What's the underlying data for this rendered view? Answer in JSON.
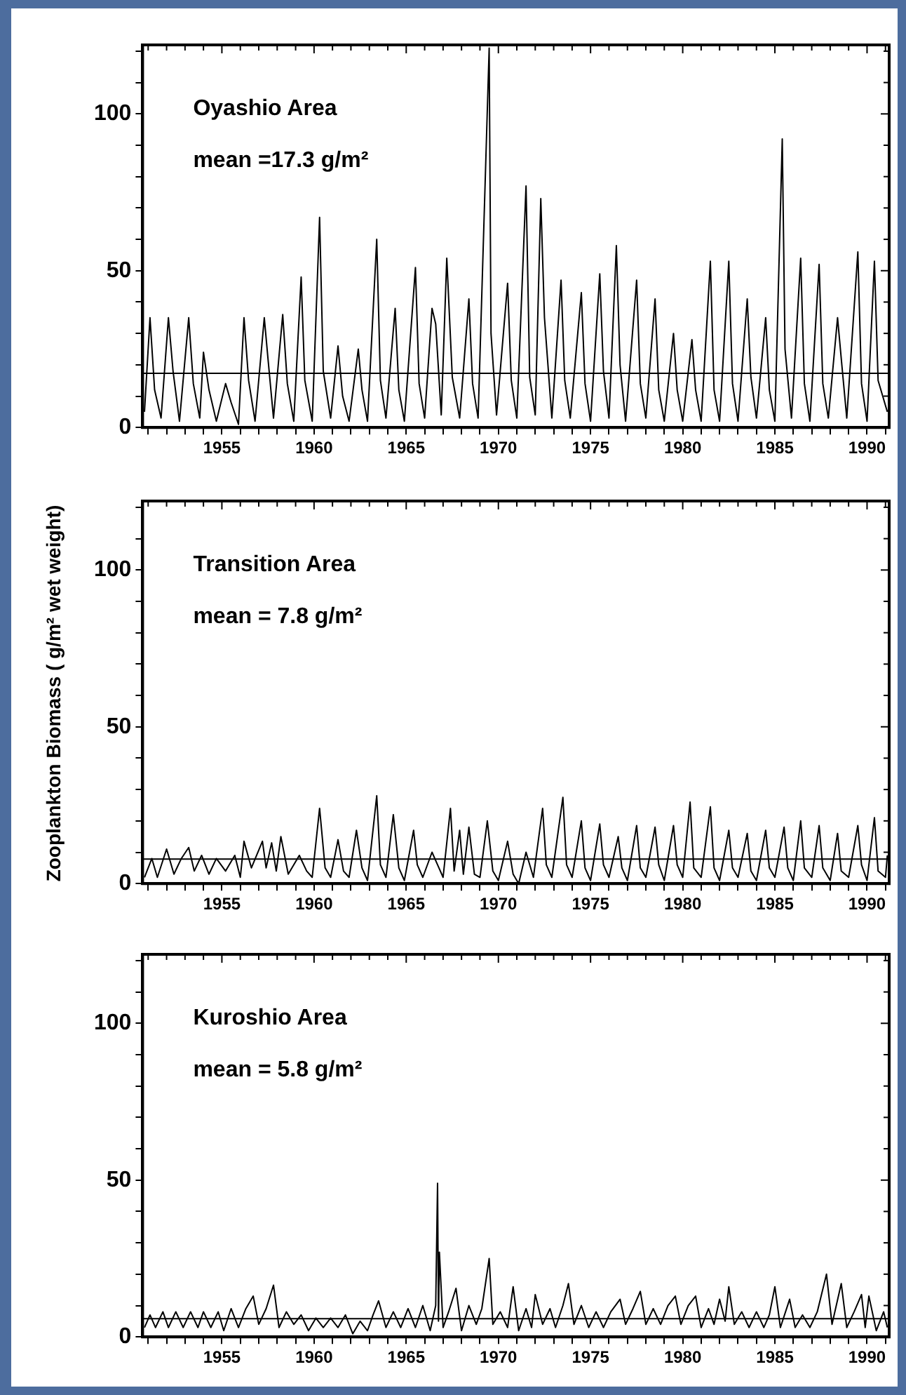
{
  "chart_data": [
    {
      "type": "line",
      "title": "Oyashio Area",
      "annotations": [
        "mean =17.3 g/m²"
      ],
      "color": "#000000",
      "marker": "none",
      "x": [
        1950.8,
        1951.1,
        1951.35,
        1951.7,
        1952.1,
        1952.35,
        1952.7,
        1953.2,
        1953.45,
        1953.8,
        1954.0,
        1954.3,
        1954.7,
        1955.2,
        1955.5,
        1955.9,
        1956.2,
        1956.45,
        1956.8,
        1957.3,
        1957.5,
        1957.8,
        1958.3,
        1958.55,
        1958.9,
        1959.3,
        1959.5,
        1959.9,
        1960.3,
        1960.5,
        1960.9,
        1961.3,
        1961.55,
        1961.9,
        1962.4,
        1962.6,
        1962.9,
        1963.4,
        1963.6,
        1963.9,
        1964.4,
        1964.6,
        1964.9,
        1965.5,
        1965.7,
        1966.0,
        1966.4,
        1966.6,
        1966.9,
        1967.2,
        1967.5,
        1967.9,
        1968.4,
        1968.6,
        1968.9,
        1969.5,
        1969.6,
        1969.9,
        1970.5,
        1970.7,
        1971.0,
        1971.5,
        1971.7,
        1972.0,
        1972.3,
        1972.5,
        1972.9,
        1973.4,
        1973.6,
        1973.9,
        1974.5,
        1974.7,
        1975.0,
        1975.5,
        1975.7,
        1976.0,
        1976.4,
        1976.6,
        1976.9,
        1977.5,
        1977.7,
        1978.0,
        1978.5,
        1978.7,
        1979.0,
        1979.5,
        1979.7,
        1980.0,
        1980.5,
        1980.7,
        1981.0,
        1981.5,
        1981.7,
        1982.0,
        1982.5,
        1982.7,
        1983.0,
        1983.5,
        1983.7,
        1984.0,
        1984.5,
        1984.7,
        1985.0,
        1985.4,
        1985.55,
        1985.9,
        1986.4,
        1986.6,
        1986.9,
        1987.4,
        1987.6,
        1987.9,
        1988.4,
        1988.6,
        1988.9,
        1989.5,
        1989.7,
        1990.0,
        1990.4,
        1990.6,
        1991.1
      ],
      "values": [
        5,
        35,
        12,
        3,
        35,
        18,
        2,
        35,
        14,
        3,
        24,
        12,
        2,
        14,
        8,
        1,
        35,
        15,
        2,
        35,
        22,
        3,
        36,
        14,
        2,
        48,
        15,
        2,
        67,
        18,
        3,
        26,
        10,
        2,
        25,
        12,
        2,
        60,
        15,
        3,
        38,
        12,
        2,
        51,
        14,
        3,
        38,
        33,
        4,
        54,
        16,
        3,
        41,
        14,
        3,
        121,
        30,
        4,
        46,
        15,
        3,
        77,
        16,
        4,
        73,
        35,
        3,
        47,
        15,
        3,
        43,
        14,
        2,
        49,
        18,
        3,
        58,
        20,
        2,
        47,
        14,
        3,
        41,
        12,
        2,
        30,
        12,
        2,
        28,
        12,
        2,
        53,
        12,
        2,
        53,
        14,
        2,
        41,
        16,
        3,
        35,
        12,
        2,
        92,
        25,
        3,
        54,
        14,
        2,
        52,
        14,
        3,
        35,
        22,
        3,
        56,
        14,
        2,
        53,
        15,
        5
      ],
      "ref_lines": [
        {
          "axis": "y",
          "value": 17.3
        }
      ],
      "xlim": [
        1950.7,
        1991.2
      ],
      "ylim": [
        0,
        122
      ],
      "xticks": [
        {
          "value": 1951,
          "label": null
        },
        {
          "value": 1952,
          "label": null
        },
        {
          "value": 1953,
          "label": null
        },
        {
          "value": 1954,
          "label": null
        },
        1955,
        {
          "value": 1956,
          "label": null
        },
        {
          "value": 1957,
          "label": null
        },
        {
          "value": 1958,
          "label": null
        },
        {
          "value": 1959,
          "label": null
        },
        1960,
        {
          "value": 1961,
          "label": null
        },
        {
          "value": 1962,
          "label": null
        },
        {
          "value": 1963,
          "label": null
        },
        {
          "value": 1964,
          "label": null
        },
        1965,
        {
          "value": 1966,
          "label": null
        },
        {
          "value": 1967,
          "label": null
        },
        {
          "value": 1968,
          "label": null
        },
        {
          "value": 1969,
          "label": null
        },
        1970,
        {
          "value": 1971,
          "label": null
        },
        {
          "value": 1972,
          "label": null
        },
        {
          "value": 1973,
          "label": null
        },
        {
          "value": 1974,
          "label": null
        },
        1975,
        {
          "value": 1976,
          "label": null
        },
        {
          "value": 1977,
          "label": null
        },
        {
          "value": 1978,
          "label": null
        },
        {
          "value": 1979,
          "label": null
        },
        1980,
        {
          "value": 1981,
          "label": null
        },
        {
          "value": 1982,
          "label": null
        },
        {
          "value": 1983,
          "label": null
        },
        {
          "value": 1984,
          "label": null
        },
        1985,
        {
          "value": 1986,
          "label": null
        },
        {
          "value": 1987,
          "label": null
        },
        {
          "value": 1988,
          "label": null
        },
        {
          "value": 1989,
          "label": null
        },
        1990,
        {
          "value": 1991,
          "label": null
        }
      ],
      "yticks": [
        0,
        {
          "value": 10,
          "label": null
        },
        {
          "value": 20,
          "label": null
        },
        {
          "value": 30,
          "label": null
        },
        {
          "value": 40,
          "label": null
        },
        50,
        {
          "value": 60,
          "label": null
        },
        {
          "value": 70,
          "label": null
        },
        {
          "value": 80,
          "label": null
        },
        {
          "value": 90,
          "label": null
        },
        100,
        {
          "value": 110,
          "label": null
        },
        {
          "value": 120,
          "label": null
        }
      ]
    },
    {
      "type": "line",
      "title": "Transition Area",
      "annotations": [
        "mean = 7.8 g/m²"
      ],
      "ylabel": "Zooplankton Biomass ( g/m² wet weight)",
      "color": "#000000",
      "marker": "none",
      "x": [
        1950.8,
        1951.2,
        1951.5,
        1952.0,
        1952.4,
        1952.8,
        1953.2,
        1953.5,
        1953.9,
        1954.3,
        1954.7,
        1955.2,
        1955.7,
        1956.0,
        1956.2,
        1956.6,
        1957.2,
        1957.4,
        1957.7,
        1957.95,
        1958.2,
        1958.6,
        1959.2,
        1959.6,
        1959.9,
        1960.3,
        1960.6,
        1960.9,
        1961.3,
        1961.6,
        1961.9,
        1962.3,
        1962.6,
        1962.9,
        1963.4,
        1963.6,
        1963.9,
        1964.3,
        1964.6,
        1964.9,
        1965.4,
        1965.6,
        1965.9,
        1966.4,
        1966.7,
        1967.0,
        1967.4,
        1967.6,
        1967.9,
        1968.1,
        1968.4,
        1968.7,
        1969.0,
        1969.4,
        1969.7,
        1970.0,
        1970.5,
        1970.8,
        1971.1,
        1971.5,
        1971.9,
        1972.4,
        1972.6,
        1972.9,
        1973.5,
        1973.7,
        1974.0,
        1974.5,
        1974.7,
        1975.0,
        1975.5,
        1975.7,
        1976.0,
        1976.5,
        1976.7,
        1977.0,
        1977.5,
        1977.7,
        1978.0,
        1978.5,
        1978.7,
        1979.0,
        1979.5,
        1979.7,
        1980.0,
        1980.4,
        1980.6,
        1981.0,
        1981.5,
        1981.7,
        1982.0,
        1982.5,
        1982.7,
        1983.0,
        1983.5,
        1983.7,
        1984.0,
        1984.5,
        1984.7,
        1985.0,
        1985.5,
        1985.7,
        1986.0,
        1986.4,
        1986.6,
        1987.0,
        1987.4,
        1987.6,
        1988.0,
        1988.4,
        1988.6,
        1989.0,
        1989.5,
        1989.7,
        1990.0,
        1990.4,
        1990.6,
        1991.0,
        1991.1
      ],
      "values": [
        2,
        8,
        2,
        11,
        3,
        8,
        11.5,
        4,
        9,
        3,
        8,
        4,
        9,
        2,
        13.5,
        5,
        13.5,
        5,
        13,
        4,
        15,
        3,
        9,
        4,
        2,
        24,
        5,
        2,
        14,
        4,
        2,
        17,
        5,
        1,
        28,
        6,
        2,
        22,
        5,
        1,
        17,
        6,
        2,
        10,
        6,
        2,
        24,
        4,
        17,
        3,
        18,
        3,
        2,
        20,
        4,
        1,
        13.5,
        3,
        0,
        10,
        2,
        24,
        6,
        2,
        27.5,
        6,
        2,
        20,
        5,
        1,
        19,
        6,
        2,
        15,
        5,
        1,
        18.5,
        5,
        2,
        18,
        6,
        1,
        18.5,
        6,
        2,
        26,
        5,
        2,
        24.5,
        5,
        1,
        17,
        5,
        2,
        16,
        4,
        1,
        17,
        5,
        2,
        18,
        5,
        1,
        20,
        5,
        2,
        18.5,
        5,
        1,
        16,
        4,
        2,
        18.5,
        6,
        1,
        21,
        4,
        2,
        9
      ],
      "ref_lines": [
        {
          "axis": "y",
          "value": 7.8
        }
      ],
      "xlim": [
        1950.7,
        1991.2
      ],
      "ylim": [
        0,
        122
      ],
      "xticks": [
        {
          "value": 1951,
          "label": null
        },
        {
          "value": 1952,
          "label": null
        },
        {
          "value": 1953,
          "label": null
        },
        {
          "value": 1954,
          "label": null
        },
        1955,
        {
          "value": 1956,
          "label": null
        },
        {
          "value": 1957,
          "label": null
        },
        {
          "value": 1958,
          "label": null
        },
        {
          "value": 1959,
          "label": null
        },
        1960,
        {
          "value": 1961,
          "label": null
        },
        {
          "value": 1962,
          "label": null
        },
        {
          "value": 1963,
          "label": null
        },
        {
          "value": 1964,
          "label": null
        },
        1965,
        {
          "value": 1966,
          "label": null
        },
        {
          "value": 1967,
          "label": null
        },
        {
          "value": 1968,
          "label": null
        },
        {
          "value": 1969,
          "label": null
        },
        1970,
        {
          "value": 1971,
          "label": null
        },
        {
          "value": 1972,
          "label": null
        },
        {
          "value": 1973,
          "label": null
        },
        {
          "value": 1974,
          "label": null
        },
        1975,
        {
          "value": 1976,
          "label": null
        },
        {
          "value": 1977,
          "label": null
        },
        {
          "value": 1978,
          "label": null
        },
        {
          "value": 1979,
          "label": null
        },
        1980,
        {
          "value": 1981,
          "label": null
        },
        {
          "value": 1982,
          "label": null
        },
        {
          "value": 1983,
          "label": null
        },
        {
          "value": 1984,
          "label": null
        },
        1985,
        {
          "value": 1986,
          "label": null
        },
        {
          "value": 1987,
          "label": null
        },
        {
          "value": 1988,
          "label": null
        },
        {
          "value": 1989,
          "label": null
        },
        1990,
        {
          "value": 1991,
          "label": null
        }
      ],
      "yticks": [
        0,
        {
          "value": 10,
          "label": null
        },
        {
          "value": 20,
          "label": null
        },
        {
          "value": 30,
          "label": null
        },
        {
          "value": 40,
          "label": null
        },
        50,
        {
          "value": 60,
          "label": null
        },
        {
          "value": 70,
          "label": null
        },
        {
          "value": 80,
          "label": null
        },
        {
          "value": 90,
          "label": null
        },
        100,
        {
          "value": 110,
          "label": null
        },
        {
          "value": 120,
          "label": null
        }
      ]
    },
    {
      "type": "line",
      "title": "Kuroshio Area",
      "annotations": [
        "mean = 5.8 g/m²"
      ],
      "color": "#000000",
      "marker": "none",
      "x": [
        1950.8,
        1951.1,
        1951.4,
        1951.8,
        1952.1,
        1952.5,
        1952.9,
        1953.3,
        1953.7,
        1954.0,
        1954.4,
        1954.8,
        1955.1,
        1955.5,
        1955.9,
        1956.3,
        1956.7,
        1957.0,
        1957.4,
        1957.8,
        1958.1,
        1958.5,
        1958.9,
        1959.3,
        1959.7,
        1960.1,
        1960.5,
        1960.9,
        1961.3,
        1961.7,
        1962.1,
        1962.5,
        1962.9,
        1963.2,
        1963.5,
        1963.9,
        1964.3,
        1964.7,
        1965.1,
        1965.5,
        1965.9,
        1966.3,
        1966.6,
        1966.7,
        1966.75,
        1966.8,
        1967.0,
        1967.3,
        1967.7,
        1968.0,
        1968.4,
        1968.8,
        1969.1,
        1969.5,
        1969.7,
        1970.1,
        1970.5,
        1970.8,
        1971.1,
        1971.5,
        1971.8,
        1972.0,
        1972.4,
        1972.8,
        1973.1,
        1973.5,
        1973.8,
        1974.1,
        1974.5,
        1974.9,
        1975.3,
        1975.7,
        1976.1,
        1976.6,
        1976.9,
        1977.3,
        1977.7,
        1978.0,
        1978.4,
        1978.8,
        1979.2,
        1979.6,
        1979.9,
        1980.3,
        1980.7,
        1981.0,
        1981.4,
        1981.7,
        1982.0,
        1982.3,
        1982.5,
        1982.8,
        1983.2,
        1983.6,
        1984.0,
        1984.4,
        1984.7,
        1985.0,
        1985.3,
        1985.8,
        1986.1,
        1986.5,
        1986.9,
        1987.3,
        1987.8,
        1988.1,
        1988.6,
        1988.9,
        1989.3,
        1989.7,
        1989.9,
        1990.1,
        1990.5,
        1990.9,
        1991.1
      ],
      "values": [
        3,
        7,
        3,
        8,
        3,
        8,
        3,
        8,
        3,
        8,
        3,
        8,
        2,
        9,
        3,
        9,
        13,
        4,
        9,
        16.5,
        3,
        8,
        4,
        7,
        2,
        6,
        3,
        6,
        3,
        7,
        1,
        5,
        2,
        7,
        11.5,
        3,
        8,
        3,
        9,
        3,
        10,
        2,
        10,
        49,
        5,
        27,
        3,
        8,
        15.5,
        2,
        10,
        4,
        9,
        25,
        4,
        8,
        3,
        16,
        2,
        9,
        3,
        13.5,
        4,
        9,
        3,
        10,
        17,
        4,
        10,
        3,
        8,
        3,
        8,
        12,
        4,
        9,
        14.5,
        4,
        9,
        4,
        10,
        13,
        4,
        10,
        13,
        3,
        9,
        4,
        12,
        5,
        16,
        4,
        8,
        3,
        8,
        3,
        7,
        16,
        3,
        12,
        3,
        7,
        3,
        8,
        20,
        4,
        17,
        3,
        8,
        13.5,
        3,
        13,
        2,
        8,
        3
      ],
      "ref_lines": [
        {
          "axis": "y",
          "value": 5.8
        }
      ],
      "xlim": [
        1950.7,
        1991.2
      ],
      "ylim": [
        0,
        122
      ],
      "xticks": [
        {
          "value": 1951,
          "label": null
        },
        {
          "value": 1952,
          "label": null
        },
        {
          "value": 1953,
          "label": null
        },
        {
          "value": 1954,
          "label": null
        },
        1955,
        {
          "value": 1956,
          "label": null
        },
        {
          "value": 1957,
          "label": null
        },
        {
          "value": 1958,
          "label": null
        },
        {
          "value": 1959,
          "label": null
        },
        1960,
        {
          "value": 1961,
          "label": null
        },
        {
          "value": 1962,
          "label": null
        },
        {
          "value": 1963,
          "label": null
        },
        {
          "value": 1964,
          "label": null
        },
        1965,
        {
          "value": 1966,
          "label": null
        },
        {
          "value": 1967,
          "label": null
        },
        {
          "value": 1968,
          "label": null
        },
        {
          "value": 1969,
          "label": null
        },
        1970,
        {
          "value": 1971,
          "label": null
        },
        {
          "value": 1972,
          "label": null
        },
        {
          "value": 1973,
          "label": null
        },
        {
          "value": 1974,
          "label": null
        },
        1975,
        {
          "value": 1976,
          "label": null
        },
        {
          "value": 1977,
          "label": null
        },
        {
          "value": 1978,
          "label": null
        },
        {
          "value": 1979,
          "label": null
        },
        1980,
        {
          "value": 1981,
          "label": null
        },
        {
          "value": 1982,
          "label": null
        },
        {
          "value": 1983,
          "label": null
        },
        {
          "value": 1984,
          "label": null
        },
        1985,
        {
          "value": 1986,
          "label": null
        },
        {
          "value": 1987,
          "label": null
        },
        {
          "value": 1988,
          "label": null
        },
        {
          "value": 1989,
          "label": null
        },
        1990,
        {
          "value": 1991,
          "label": null
        }
      ],
      "yticks": [
        0,
        {
          "value": 10,
          "label": null
        },
        {
          "value": 20,
          "label": null
        },
        {
          "value": 30,
          "label": null
        },
        {
          "value": 40,
          "label": null
        },
        50,
        {
          "value": 60,
          "label": null
        },
        {
          "value": 70,
          "label": null
        },
        {
          "value": 80,
          "label": null
        },
        {
          "value": 90,
          "label": null
        },
        100,
        {
          "value": 110,
          "label": null
        },
        {
          "value": 120,
          "label": null
        }
      ]
    }
  ]
}
